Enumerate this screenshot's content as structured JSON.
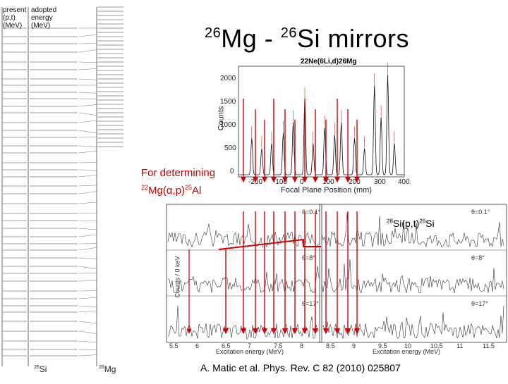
{
  "title": {
    "mass_left": "26",
    "element_left": "Mg",
    "separator": " - ",
    "mass_right": "26",
    "element_right": "Si mirrors"
  },
  "scheme": {
    "header_left": [
      "present",
      "(p,t)",
      "(MeV)"
    ],
    "header_right": [
      "adopted",
      "energy",
      "(MeV)"
    ],
    "bottom_left": "26Si",
    "bottom_right": "26Mg"
  },
  "spectrum": {
    "reaction_label": "22Ne(6Li,d)26Mg",
    "y_title": "Counts",
    "x_title": "Focal Plane Position (mm)",
    "y_ticks": [
      "2000",
      "1500",
      "1000",
      "500",
      "0"
    ],
    "x_ticks": [
      "-200",
      "-100",
      "0",
      "100",
      "200",
      "300",
      "400"
    ]
  },
  "note_alpha": {
    "line1": "For determining",
    "mass1": "22",
    "el1": "Mg(α,p)",
    "mass2": "25",
    "el2": "Al"
  },
  "note_pt": {
    "mass1": "28",
    "el1": "Si(p,t)",
    "mass2": "26",
    "el2": "Si"
  },
  "citation": "A. Matic et al. Phys. Rev. C 82 (2010) 025807",
  "panels": {
    "y_title": "Counts / 0 keV",
    "x_title": "Excitation energy (MeV)",
    "x_ticks": [
      "5.5",
      "6",
      "6.5",
      "7",
      "7.5",
      "8",
      "8.5",
      "9",
      "9.5",
      "10",
      "10.5",
      "11",
      "11.5"
    ],
    "angle_labels": [
      "θ=0.1°",
      "θ=8°",
      "θ=17°"
    ]
  },
  "colors": {
    "arrow_red": "#d40000",
    "spectrum_line": "#111111",
    "scheme_line": "#222222"
  }
}
